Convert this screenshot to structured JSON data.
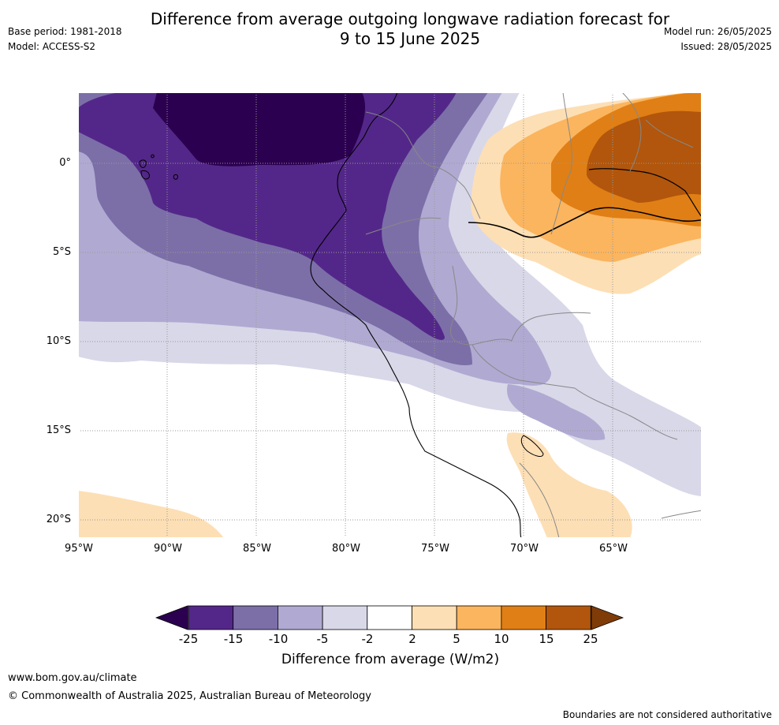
{
  "header": {
    "title_line1": "Difference from average outgoing longwave radiation forecast for",
    "title_line2": "9 to 15 June 2025",
    "base_period": "Base period: 1981-2018",
    "model": "Model: ACCESS-S2",
    "model_run": "Model run: 26/05/2025",
    "issued": "Issued: 28/05/2025"
  },
  "map": {
    "lat_labels": [
      "0°",
      "5°S",
      "10°S",
      "15°S",
      "20°S"
    ],
    "lon_labels": [
      "95°W",
      "90°W",
      "85°W",
      "80°W",
      "75°W",
      "70°W",
      "65°W"
    ]
  },
  "colorbar": {
    "ticks": [
      "-25",
      "-15",
      "-10",
      "-5",
      "-2",
      "2",
      "5",
      "10",
      "15",
      "25"
    ],
    "colors": [
      "#2b0050",
      "#532789",
      "#7c6fa8",
      "#b0aad2",
      "#d8d8e9",
      "#ffffff",
      "#fddfb5",
      "#fbb55e",
      "#e07f15",
      "#b1560c",
      "#7f3b08"
    ],
    "title": "Difference from average (W/m2)"
  },
  "footer": {
    "url": "www.bom.gov.au/climate",
    "copyright": "© Commonwealth of Australia 2025, Australian Bureau of Meteorology",
    "disclaimer": "Boundaries are not considered authoritative"
  }
}
